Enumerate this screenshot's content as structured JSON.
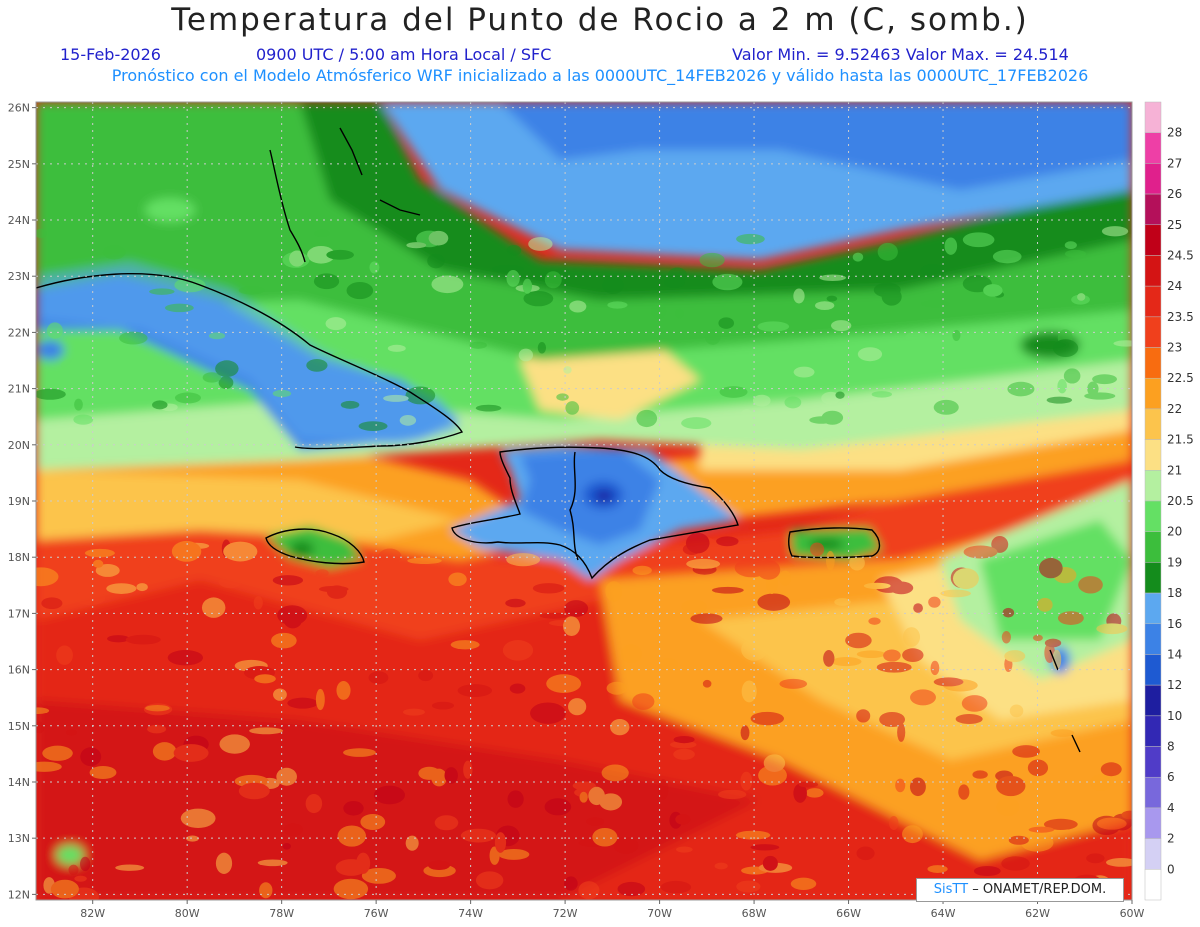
{
  "header": {
    "title": "Temperatura del Punto de Rocio a 2 m (C, somb.)",
    "date": "15-Feb-2026",
    "time": "0900 UTC / 5:00 am Hora Local / SFC",
    "minmax": "Valor Min. = 9.52463  Valor Max. = 24.514",
    "forecast_info": "Pronóstico con el Modelo Atmósferico WRF inicializado a las 0000UTC_14FEB2026 y válido hasta las  0000UTC_17FEB2026"
  },
  "credit": {
    "brand": "SisTT",
    "text": " – ONAMET/REP.DOM."
  },
  "map": {
    "lon_range": [
      -83.2,
      -60
    ],
    "lat_range": [
      11.9,
      26.1
    ],
    "lat_ticks": [
      "26N",
      "25N",
      "24N",
      "23N",
      "22N",
      "21N",
      "20N",
      "19N",
      "18N",
      "17N",
      "16N",
      "15N",
      "14N",
      "13N",
      "12N"
    ],
    "lon_ticks": [
      "82W",
      "80W",
      "78W",
      "76W",
      "74W",
      "72W",
      "70W",
      "68W",
      "66W",
      "64W",
      "62W",
      "60W"
    ]
  },
  "legend": {
    "labels": [
      "28",
      "27",
      "26",
      "25",
      "24.5",
      "24",
      "23.5",
      "23",
      "22.5",
      "22",
      "21.5",
      "21",
      "20.5",
      "20",
      "19",
      "18",
      "16",
      "14",
      "12",
      "10",
      "8",
      "6",
      "4",
      "2",
      "0"
    ],
    "colors": [
      "#f6b2d6",
      "#ee3fa6",
      "#e0208c",
      "#b4105a",
      "#c00018",
      "#d41414",
      "#e42818",
      "#f0401c",
      "#f86c10",
      "#fca020",
      "#fcc44c",
      "#fce084",
      "#b4f0a0",
      "#64e064",
      "#3cbe3c",
      "#148c1c",
      "#5ca8f0",
      "#3c82e6",
      "#1e5ad2",
      "#1e1ea0",
      "#3228b4",
      "#503cc8",
      "#7868dc",
      "#a898ee",
      "#d4d0f4",
      "#ffffff"
    ]
  }
}
